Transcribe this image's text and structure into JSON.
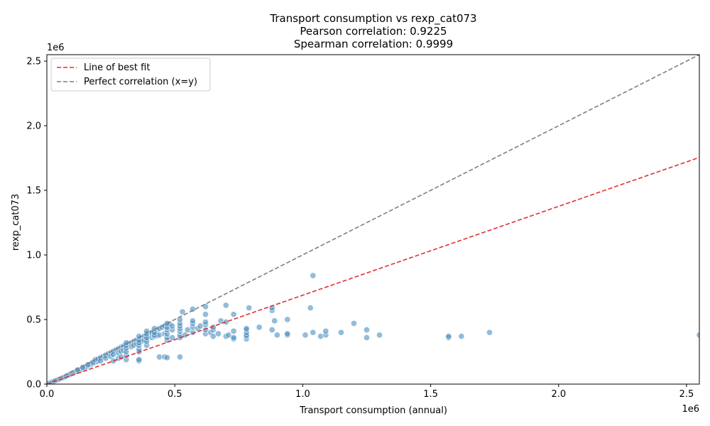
{
  "chart_data": {
    "type": "scatter",
    "title_lines": [
      "Transport consumption vs rexp_cat073",
      "Pearson correlation: 0.9225",
      "Spearman correlation: 0.9999"
    ],
    "xlabel": "Transport consumption (annual)",
    "ylabel": "rexp_cat073",
    "x_offset_text": "1e6",
    "y_offset_text": "1e6",
    "xlim": [
      0,
      2.55
    ],
    "ylim": [
      0,
      2.55
    ],
    "x_ticks": [
      0.0,
      0.5,
      1.0,
      1.5,
      2.0,
      2.5
    ],
    "y_ticks": [
      0.0,
      0.5,
      1.0,
      1.5,
      2.0,
      2.5
    ],
    "x_tick_labels": [
      "0.0",
      "0.5",
      "1.0",
      "1.5",
      "2.0",
      "2.5"
    ],
    "y_tick_labels": [
      "0.0",
      "0.5",
      "1.0",
      "1.5",
      "2.0",
      "2.5"
    ],
    "grid": false,
    "legend_position": "upper-left",
    "legend": [
      {
        "label": "Line of best fit",
        "color": "#e03030",
        "style": "dashed"
      },
      {
        "label": "Perfect correlation (x=y)",
        "color": "#7f7f7f",
        "style": "dashed"
      }
    ],
    "best_fit": {
      "slope": 0.688,
      "intercept": 0.0
    },
    "point_color": "#4d8fc0",
    "points": [
      [
        0.005,
        0.004
      ],
      [
        0.01,
        0.008
      ],
      [
        0.015,
        0.012
      ],
      [
        0.02,
        0.016
      ],
      [
        0.025,
        0.02
      ],
      [
        0.03,
        0.024
      ],
      [
        0.035,
        0.028
      ],
      [
        0.04,
        0.032
      ],
      [
        0.045,
        0.036
      ],
      [
        0.05,
        0.04
      ],
      [
        0.055,
        0.044
      ],
      [
        0.06,
        0.048
      ],
      [
        0.065,
        0.052
      ],
      [
        0.07,
        0.056
      ],
      [
        0.075,
        0.06
      ],
      [
        0.08,
        0.066
      ],
      [
        0.085,
        0.07
      ],
      [
        0.09,
        0.075
      ],
      [
        0.095,
        0.08
      ],
      [
        0.1,
        0.085
      ],
      [
        0.105,
        0.09
      ],
      [
        0.11,
        0.094
      ],
      [
        0.115,
        0.098
      ],
      [
        0.12,
        0.103
      ],
      [
        0.125,
        0.107
      ],
      [
        0.13,
        0.112
      ],
      [
        0.135,
        0.116
      ],
      [
        0.14,
        0.121
      ],
      [
        0.145,
        0.125
      ],
      [
        0.15,
        0.13
      ],
      [
        0.155,
        0.135
      ],
      [
        0.16,
        0.14
      ],
      [
        0.165,
        0.145
      ],
      [
        0.17,
        0.15
      ],
      [
        0.175,
        0.155
      ],
      [
        0.18,
        0.16
      ],
      [
        0.185,
        0.165
      ],
      [
        0.19,
        0.17
      ],
      [
        0.195,
        0.175
      ],
      [
        0.2,
        0.18
      ],
      [
        0.12,
        0.11
      ],
      [
        0.14,
        0.13
      ],
      [
        0.16,
        0.15
      ],
      [
        0.18,
        0.17
      ],
      [
        0.19,
        0.19
      ],
      [
        0.2,
        0.195
      ],
      [
        0.21,
        0.205
      ],
      [
        0.22,
        0.215
      ],
      [
        0.23,
        0.225
      ],
      [
        0.24,
        0.235
      ],
      [
        0.25,
        0.245
      ],
      [
        0.26,
        0.255
      ],
      [
        0.27,
        0.265
      ],
      [
        0.28,
        0.275
      ],
      [
        0.29,
        0.285
      ],
      [
        0.3,
        0.295
      ],
      [
        0.31,
        0.305
      ],
      [
        0.32,
        0.315
      ],
      [
        0.33,
        0.32
      ],
      [
        0.34,
        0.33
      ],
      [
        0.35,
        0.34
      ],
      [
        0.36,
        0.35
      ],
      [
        0.37,
        0.36
      ],
      [
        0.38,
        0.37
      ],
      [
        0.39,
        0.38
      ],
      [
        0.4,
        0.39
      ],
      [
        0.41,
        0.4
      ],
      [
        0.42,
        0.41
      ],
      [
        0.43,
        0.42
      ],
      [
        0.44,
        0.43
      ],
      [
        0.45,
        0.44
      ],
      [
        0.46,
        0.45
      ],
      [
        0.47,
        0.46
      ],
      [
        0.48,
        0.465
      ],
      [
        0.21,
        0.18
      ],
      [
        0.23,
        0.2
      ],
      [
        0.25,
        0.215
      ],
      [
        0.26,
        0.23
      ],
      [
        0.28,
        0.24
      ],
      [
        0.29,
        0.255
      ],
      [
        0.3,
        0.26
      ],
      [
        0.31,
        0.27
      ],
      [
        0.33,
        0.29
      ],
      [
        0.34,
        0.3
      ],
      [
        0.35,
        0.31
      ],
      [
        0.36,
        0.32
      ],
      [
        0.37,
        0.33
      ],
      [
        0.38,
        0.34
      ],
      [
        0.39,
        0.35
      ],
      [
        0.41,
        0.36
      ],
      [
        0.42,
        0.37
      ],
      [
        0.43,
        0.375
      ],
      [
        0.44,
        0.38
      ],
      [
        0.46,
        0.39
      ],
      [
        0.26,
        0.18
      ],
      [
        0.28,
        0.2
      ],
      [
        0.29,
        0.21
      ],
      [
        0.31,
        0.19
      ],
      [
        0.31,
        0.22
      ],
      [
        0.31,
        0.25
      ],
      [
        0.31,
        0.28
      ],
      [
        0.31,
        0.3
      ],
      [
        0.31,
        0.32
      ],
      [
        0.36,
        0.18
      ],
      [
        0.36,
        0.19
      ],
      [
        0.36,
        0.25
      ],
      [
        0.36,
        0.27
      ],
      [
        0.36,
        0.3
      ],
      [
        0.36,
        0.32
      ],
      [
        0.36,
        0.34
      ],
      [
        0.36,
        0.37
      ],
      [
        0.39,
        0.3
      ],
      [
        0.39,
        0.33
      ],
      [
        0.39,
        0.36
      ],
      [
        0.39,
        0.39
      ],
      [
        0.39,
        0.41
      ],
      [
        0.42,
        0.38
      ],
      [
        0.42,
        0.4
      ],
      [
        0.42,
        0.43
      ],
      [
        0.44,
        0.21
      ],
      [
        0.46,
        0.21
      ],
      [
        0.47,
        0.205
      ],
      [
        0.47,
        0.34
      ],
      [
        0.47,
        0.36
      ],
      [
        0.47,
        0.39
      ],
      [
        0.47,
        0.42
      ],
      [
        0.47,
        0.44
      ],
      [
        0.47,
        0.47
      ],
      [
        0.49,
        0.36
      ],
      [
        0.49,
        0.42
      ],
      [
        0.49,
        0.45
      ],
      [
        0.52,
        0.21
      ],
      [
        0.52,
        0.36
      ],
      [
        0.52,
        0.38
      ],
      [
        0.52,
        0.41
      ],
      [
        0.52,
        0.43
      ],
      [
        0.52,
        0.45
      ],
      [
        0.52,
        0.47
      ],
      [
        0.52,
        0.5
      ],
      [
        0.53,
        0.56
      ],
      [
        0.54,
        0.38
      ],
      [
        0.55,
        0.42
      ],
      [
        0.57,
        0.4
      ],
      [
        0.57,
        0.44
      ],
      [
        0.57,
        0.47
      ],
      [
        0.57,
        0.49
      ],
      [
        0.57,
        0.58
      ],
      [
        0.59,
        0.43
      ],
      [
        0.6,
        0.45
      ],
      [
        0.62,
        0.39
      ],
      [
        0.62,
        0.42
      ],
      [
        0.62,
        0.46
      ],
      [
        0.62,
        0.48
      ],
      [
        0.62,
        0.54
      ],
      [
        0.62,
        0.6
      ],
      [
        0.64,
        0.4
      ],
      [
        0.65,
        0.37
      ],
      [
        0.65,
        0.42
      ],
      [
        0.65,
        0.44
      ],
      [
        0.67,
        0.39
      ],
      [
        0.68,
        0.49
      ],
      [
        0.7,
        0.37
      ],
      [
        0.7,
        0.48
      ],
      [
        0.7,
        0.61
      ],
      [
        0.71,
        0.38
      ],
      [
        0.73,
        0.35
      ],
      [
        0.73,
        0.36
      ],
      [
        0.73,
        0.41
      ],
      [
        0.73,
        0.54
      ],
      [
        0.78,
        0.35
      ],
      [
        0.78,
        0.37
      ],
      [
        0.78,
        0.38
      ],
      [
        0.78,
        0.4
      ],
      [
        0.78,
        0.42
      ],
      [
        0.78,
        0.43
      ],
      [
        0.79,
        0.59
      ],
      [
        0.83,
        0.44
      ],
      [
        0.88,
        0.42
      ],
      [
        0.88,
        0.57
      ],
      [
        0.88,
        0.59
      ],
      [
        0.89,
        0.49
      ],
      [
        0.9,
        0.38
      ],
      [
        0.94,
        0.38
      ],
      [
        0.94,
        0.39
      ],
      [
        0.94,
        0.5
      ],
      [
        1.01,
        0.38
      ],
      [
        1.03,
        0.59
      ],
      [
        1.04,
        0.4
      ],
      [
        1.04,
        0.84
      ],
      [
        1.07,
        0.37
      ],
      [
        1.09,
        0.38
      ],
      [
        1.09,
        0.41
      ],
      [
        1.15,
        0.4
      ],
      [
        1.2,
        0.47
      ],
      [
        1.25,
        0.36
      ],
      [
        1.25,
        0.42
      ],
      [
        1.3,
        0.38
      ],
      [
        1.57,
        0.36
      ],
      [
        1.57,
        0.37
      ],
      [
        1.62,
        0.37
      ],
      [
        1.73,
        0.4
      ],
      [
        2.55,
        0.38
      ]
    ]
  }
}
